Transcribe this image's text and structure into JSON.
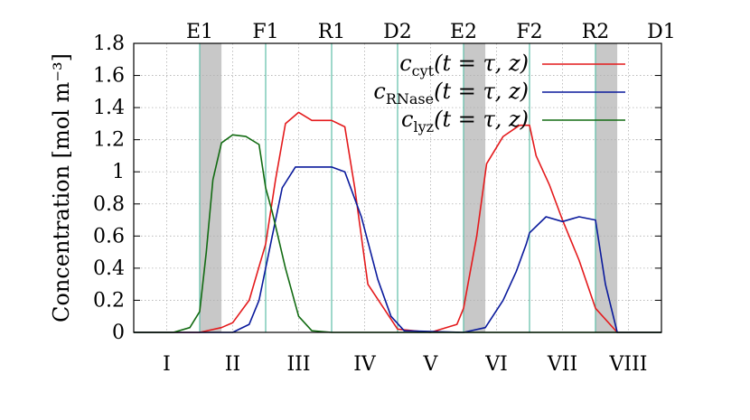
{
  "chart_data": {
    "type": "line",
    "title": "",
    "xlabel": "",
    "ylabel": "Concentration [mol m⁻³]",
    "ylim": [
      0,
      1.8
    ],
    "xlim": [
      0,
      8
    ],
    "yticks": [
      "0",
      "0.2",
      "0.4",
      "0.6",
      "0.8",
      "1",
      "1.2",
      "1.4",
      "1.6",
      "1.8"
    ],
    "grid": true,
    "legend_position": "top-right",
    "region_labels": [
      "I",
      "II",
      "III",
      "IV",
      "V",
      "VI",
      "VII",
      "VIII"
    ],
    "top_labels": [
      {
        "label": "E1",
        "x": 1
      },
      {
        "label": "F1",
        "x": 2
      },
      {
        "label": "R1",
        "x": 3
      },
      {
        "label": "D2",
        "x": 4
      },
      {
        "label": "E2",
        "x": 5
      },
      {
        "label": "F2",
        "x": 6
      },
      {
        "label": "R2",
        "x": 7
      },
      {
        "label": "D1",
        "x": 8
      }
    ],
    "shaded_bands": [
      [
        1,
        1.33
      ],
      [
        5,
        5.33
      ],
      [
        7,
        7.33
      ]
    ],
    "colors": {
      "cyt": "#e41a1c",
      "rnase": "#0a1a9c",
      "lyz": "#126b12",
      "vline": "#5fbfa8",
      "band": "#c8c8c8",
      "grid": "#b0b0b0"
    },
    "series": [
      {
        "name": "c_cyt(t = τ, z)",
        "legend": {
          "main": "c",
          "sub": "cyt",
          "rest": "(t = τ, z)"
        },
        "color": "#e41a1c",
        "x": [
          0,
          1,
          1.33,
          1.5,
          1.75,
          2.0,
          2.15,
          2.3,
          2.5,
          2.7,
          3.0,
          3.2,
          3.35,
          3.55,
          4.0,
          4.5,
          4.9,
          5.0,
          5.2,
          5.35,
          5.6,
          5.85,
          6.0,
          6.1,
          6.3,
          6.5,
          6.75,
          7.0,
          7.33,
          8
        ],
        "y": [
          0,
          0,
          0.03,
          0.06,
          0.2,
          0.55,
          0.95,
          1.3,
          1.37,
          1.32,
          1.32,
          1.28,
          0.9,
          0.3,
          0.02,
          0,
          0.05,
          0.15,
          0.6,
          1.05,
          1.22,
          1.29,
          1.29,
          1.1,
          0.92,
          0.7,
          0.45,
          0.15,
          0,
          0
        ]
      },
      {
        "name": "c_RNase(t = τ, z)",
        "legend": {
          "main": "c",
          "sub": "RNase",
          "rest": "(t = τ, z)"
        },
        "color": "#0a1a9c",
        "x": [
          0,
          1.5,
          1.75,
          1.9,
          2.1,
          2.25,
          2.45,
          2.7,
          3.0,
          3.2,
          3.45,
          3.7,
          3.9,
          4.1,
          5.0,
          5.33,
          5.6,
          5.8,
          5.95,
          6.0,
          6.25,
          6.5,
          6.75,
          7.0,
          7.15,
          7.33,
          8
        ],
        "y": [
          0,
          0,
          0.05,
          0.2,
          0.6,
          0.9,
          1.03,
          1.03,
          1.03,
          1.0,
          0.72,
          0.33,
          0.1,
          0.01,
          0,
          0.03,
          0.2,
          0.38,
          0.55,
          0.62,
          0.72,
          0.69,
          0.72,
          0.7,
          0.3,
          0,
          0
        ]
      },
      {
        "name": "c_lyz(t = τ, z)",
        "legend": {
          "main": "c",
          "sub": "lyz",
          "rest": "(t = τ, z)"
        },
        "color": "#126b12",
        "x": [
          0,
          0.6,
          0.85,
          1.0,
          1.1,
          1.2,
          1.33,
          1.5,
          1.7,
          1.9,
          2.0,
          2.1,
          2.3,
          2.5,
          2.7,
          3.0,
          8
        ],
        "y": [
          0,
          0,
          0.03,
          0.13,
          0.5,
          0.95,
          1.18,
          1.23,
          1.22,
          1.17,
          0.9,
          0.75,
          0.4,
          0.1,
          0.01,
          0,
          0
        ]
      }
    ]
  }
}
